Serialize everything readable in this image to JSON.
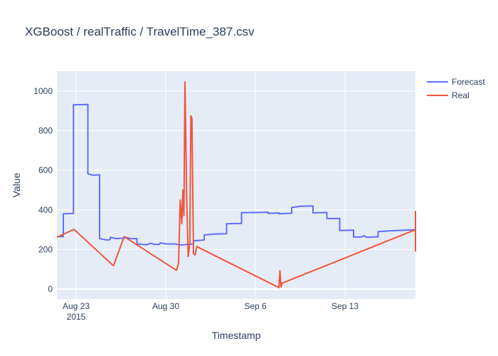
{
  "chart_data": {
    "type": "line",
    "title": "XGBoost / realTraffic / TravelTime_387.csv",
    "xlabel": "Timestamp",
    "ylabel": "Value",
    "x_ticks": [
      {
        "date": "2015-08-23",
        "label": "Aug 23",
        "sublabel": "2015"
      },
      {
        "date": "2015-08-30",
        "label": "Aug 30",
        "sublabel": ""
      },
      {
        "date": "2015-09-06",
        "label": "Sep 6",
        "sublabel": ""
      },
      {
        "date": "2015-09-13",
        "label": "Sep 13",
        "sublabel": ""
      }
    ],
    "xlim": [
      "2015-08-21 12:00",
      "2015-09-18 12:00"
    ],
    "y_ticks": [
      0,
      200,
      400,
      600,
      800,
      1000
    ],
    "ylim": [
      -50,
      1100
    ],
    "grid": true,
    "legend_position": "top-right",
    "series": [
      {
        "name": "Forecast",
        "color": "#636efa",
        "points": [
          [
            "2015-08-21 12:00",
            265
          ],
          [
            "2015-08-22 00:00",
            265
          ],
          [
            "2015-08-22 00:00",
            380
          ],
          [
            "2015-08-22 19:00",
            382
          ],
          [
            "2015-08-22 19:00",
            930
          ],
          [
            "2015-08-23 22:00",
            932
          ],
          [
            "2015-08-23 22:00",
            582
          ],
          [
            "2015-08-24 08:00",
            575
          ],
          [
            "2015-08-24 20:00",
            577
          ],
          [
            "2015-08-24 20:00",
            255
          ],
          [
            "2015-08-25 10:00",
            248
          ],
          [
            "2015-08-25 16:00",
            250
          ],
          [
            "2015-08-25 16:00",
            262
          ],
          [
            "2015-08-26 02:00",
            255
          ],
          [
            "2015-08-26 20:00",
            258
          ],
          [
            "2015-08-26 20:00",
            262
          ],
          [
            "2015-08-27 06:00",
            255
          ],
          [
            "2015-08-27 18:00",
            255
          ],
          [
            "2015-08-27 18:00",
            228
          ],
          [
            "2015-08-28 12:00",
            224
          ],
          [
            "2015-08-28 20:00",
            232
          ],
          [
            "2015-08-29 02:00",
            226
          ],
          [
            "2015-08-29 12:00",
            226
          ],
          [
            "2015-08-29 14:00",
            234
          ],
          [
            "2015-08-30 00:00",
            228
          ],
          [
            "2015-08-30 20:00",
            228
          ],
          [
            "2015-08-31 00:00",
            222
          ],
          [
            "2015-08-31 14:00",
            225
          ],
          [
            "2015-09-01 04:00",
            228
          ],
          [
            "2015-09-01 04:00",
            244
          ],
          [
            "2015-09-02 00:00",
            248
          ],
          [
            "2015-09-02 00:00",
            273
          ],
          [
            "2015-09-02 18:00",
            278
          ],
          [
            "2015-09-03 18:00",
            280
          ],
          [
            "2015-09-03 18:00",
            330
          ],
          [
            "2015-09-04 22:00",
            332
          ],
          [
            "2015-09-04 22:00",
            386
          ],
          [
            "2015-09-07 00:00",
            388
          ],
          [
            "2015-09-07 00:00",
            382
          ],
          [
            "2015-09-07 20:00",
            385
          ],
          [
            "2015-09-07 20:00",
            380
          ],
          [
            "2015-09-08 20:00",
            383
          ],
          [
            "2015-09-08 20:00",
            412
          ],
          [
            "2015-09-09 12:00",
            418
          ],
          [
            "2015-09-10 12:00",
            420
          ],
          [
            "2015-09-10 12:00",
            385
          ],
          [
            "2015-09-11 14:00",
            387
          ],
          [
            "2015-09-11 14:00",
            356
          ],
          [
            "2015-09-12 14:00",
            357
          ],
          [
            "2015-09-12 14:00",
            296
          ],
          [
            "2015-09-13 16:00",
            298
          ],
          [
            "2015-09-13 16:00",
            263
          ],
          [
            "2015-09-14 06:00",
            263
          ],
          [
            "2015-09-14 12:00",
            270
          ],
          [
            "2015-09-14 16:00",
            262
          ],
          [
            "2015-09-15 14:00",
            264
          ],
          [
            "2015-09-15 14:00",
            290
          ],
          [
            "2015-09-16 12:00",
            294
          ],
          [
            "2015-09-18 12:00",
            300
          ]
        ]
      },
      {
        "name": "Real",
        "color": "#ef553b",
        "points": [
          [
            "2015-08-21 12:00",
            262
          ],
          [
            "2015-08-22 20:00",
            302
          ],
          [
            "2015-08-25 22:00",
            118
          ],
          [
            "2015-08-26 18:00",
            265
          ],
          [
            "2015-08-30 20:00",
            95
          ],
          [
            "2015-08-31 00:00",
            130
          ],
          [
            "2015-08-31 03:00",
            450
          ],
          [
            "2015-08-31 06:00",
            330
          ],
          [
            "2015-08-31 08:00",
            500
          ],
          [
            "2015-08-31 10:00",
            370
          ],
          [
            "2015-08-31 12:00",
            1045
          ],
          [
            "2015-08-31 15:00",
            480
          ],
          [
            "2015-08-31 18:00",
            165
          ],
          [
            "2015-08-31 21:00",
            230
          ],
          [
            "2015-08-31 23:00",
            875
          ],
          [
            "2015-09-01 01:00",
            860
          ],
          [
            "2015-09-01 04:00",
            180
          ],
          [
            "2015-09-01 07:00",
            172
          ],
          [
            "2015-09-01 10:00",
            215
          ],
          [
            "2015-09-07 20:00",
            8
          ],
          [
            "2015-09-07 22:00",
            92
          ],
          [
            "2015-09-08 00:00",
            10
          ],
          [
            "2015-09-08 02:00",
            30
          ],
          [
            "2015-09-18 12:00",
            300
          ],
          [
            "2015-09-18 12:00",
            392
          ],
          [
            "2015-09-18 12:00",
            190
          ]
        ]
      }
    ]
  }
}
